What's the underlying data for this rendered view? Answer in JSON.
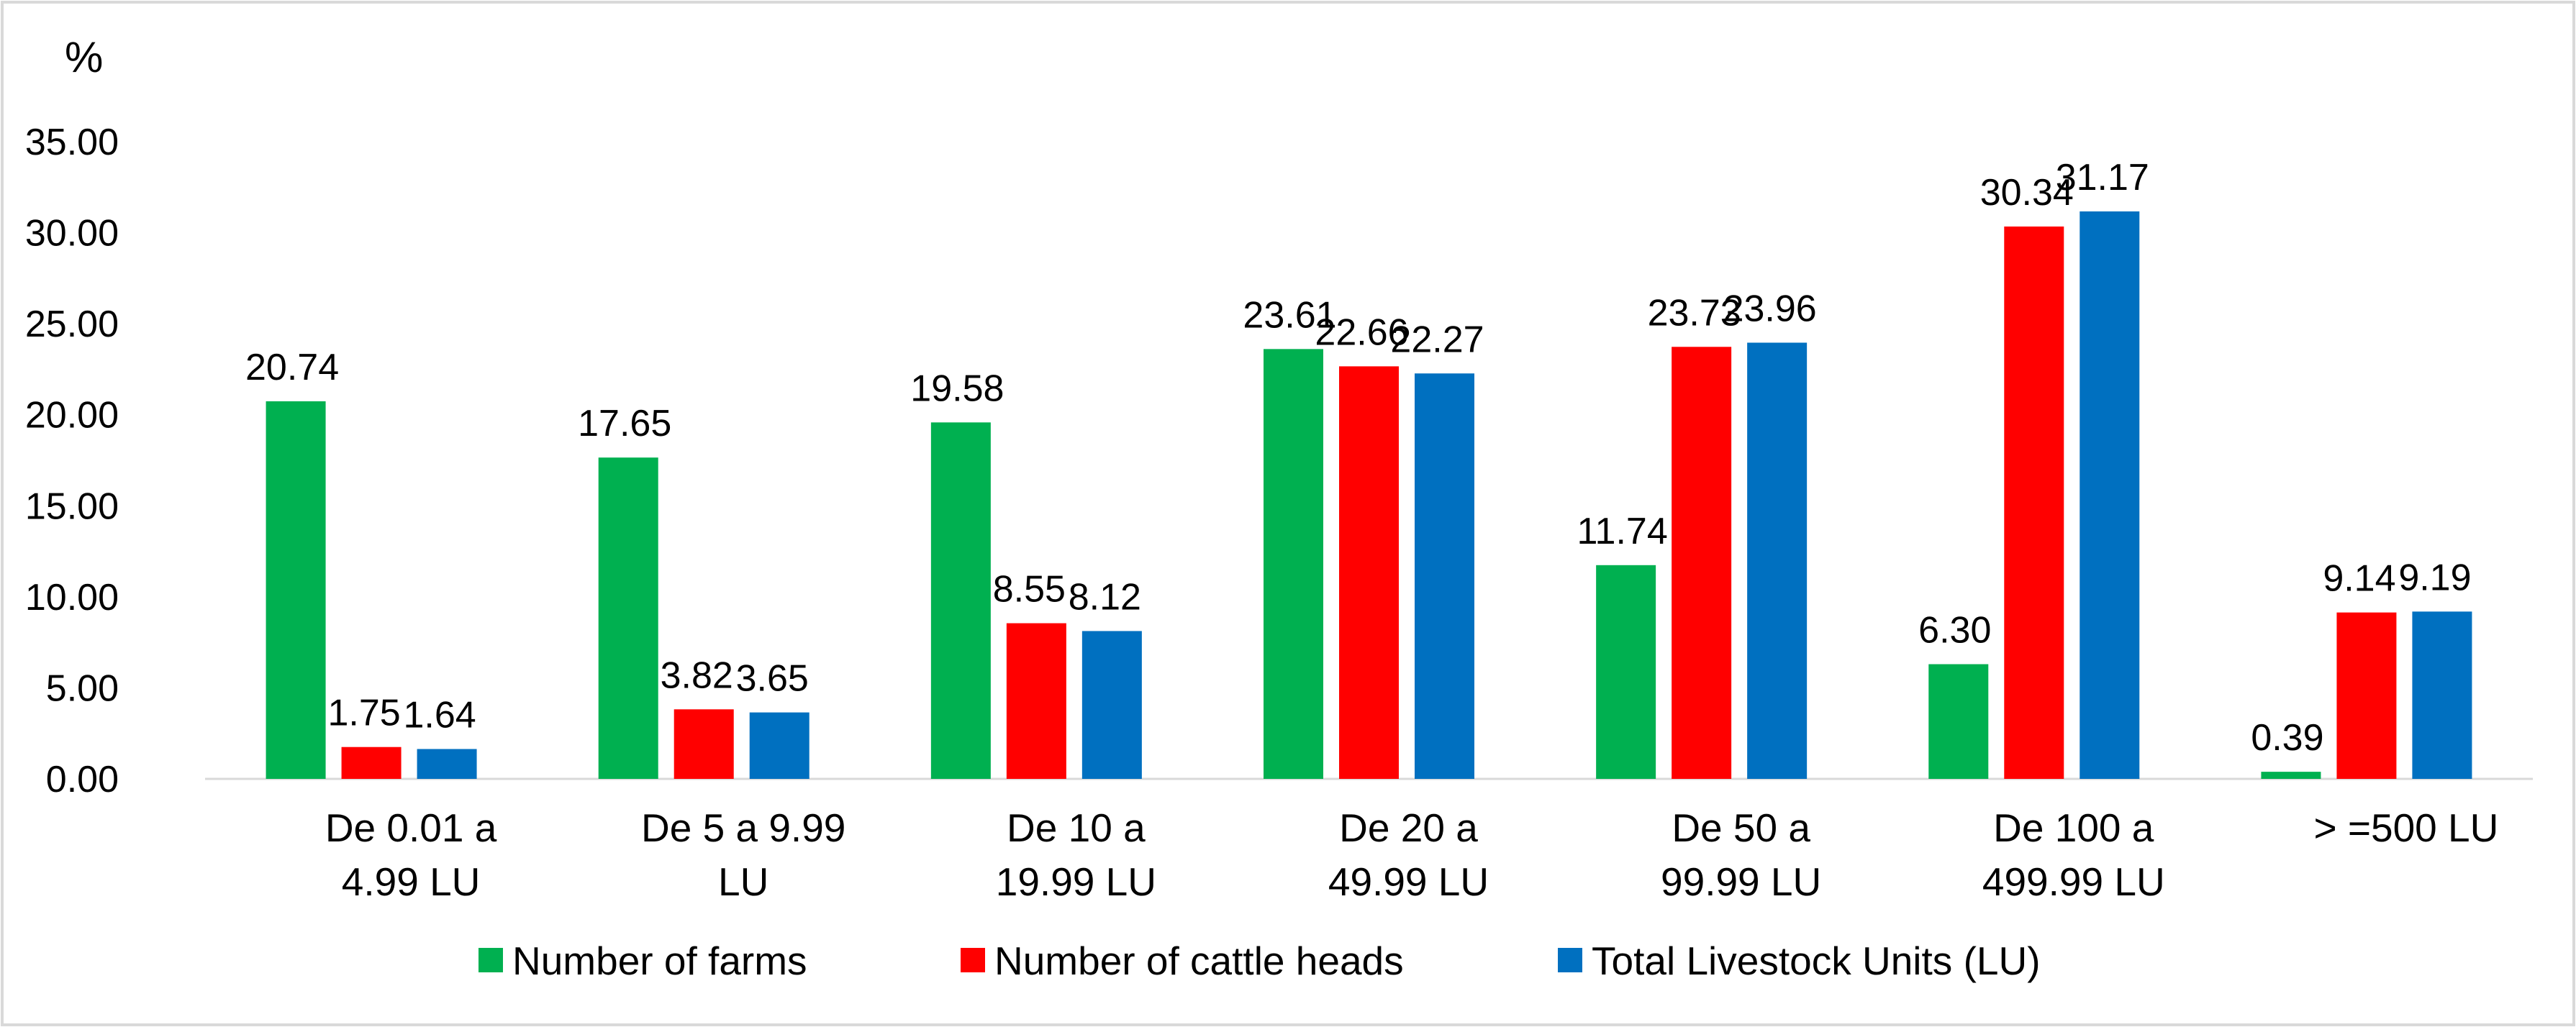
{
  "chart_data": {
    "type": "bar",
    "title": "",
    "ylabel": "%",
    "xlabel": "",
    "ylim": [
      0,
      35
    ],
    "y_ticks": [
      "0.00",
      "5.00",
      "10.00",
      "15.00",
      "20.00",
      "25.00",
      "30.00",
      "35.00"
    ],
    "y_tick_values": [
      0,
      5,
      10,
      15,
      20,
      25,
      30,
      35
    ],
    "grid": false,
    "legend_position": "bottom",
    "categories": [
      [
        "De 0.01 a",
        "4.99 LU"
      ],
      [
        "De 5 a 9.99",
        "LU"
      ],
      [
        "De 10 a",
        "19.99 LU"
      ],
      [
        "De 20 a",
        "49.99 LU"
      ],
      [
        "De 50 a",
        "99.99 LU"
      ],
      [
        "De 100 a",
        "499.99 LU"
      ],
      [
        "> =500 LU"
      ]
    ],
    "series": [
      {
        "name": "Number of farms",
        "color": "#00b050",
        "values": [
          20.74,
          17.65,
          19.58,
          23.61,
          11.74,
          6.3,
          0.39
        ],
        "labels": [
          "20.74",
          "17.65",
          "19.58",
          "23.61",
          "11.74",
          "6.30",
          "0.39"
        ]
      },
      {
        "name": "Number of cattle heads",
        "color": "#ff0000",
        "values": [
          1.75,
          3.82,
          8.55,
          22.66,
          23.73,
          30.34,
          9.14
        ],
        "labels": [
          "1.75",
          "3.82",
          "8.55",
          "22.66",
          "23.73",
          "30.34",
          "9.14"
        ]
      },
      {
        "name": "Total Livestock Units (LU)",
        "color": "#0070c0",
        "values": [
          1.64,
          3.65,
          8.12,
          22.27,
          23.96,
          31.17,
          9.19
        ],
        "labels": [
          "1.64",
          "3.65",
          "8.12",
          "22.27",
          "23.96",
          "31.17",
          "9.19"
        ]
      }
    ]
  }
}
